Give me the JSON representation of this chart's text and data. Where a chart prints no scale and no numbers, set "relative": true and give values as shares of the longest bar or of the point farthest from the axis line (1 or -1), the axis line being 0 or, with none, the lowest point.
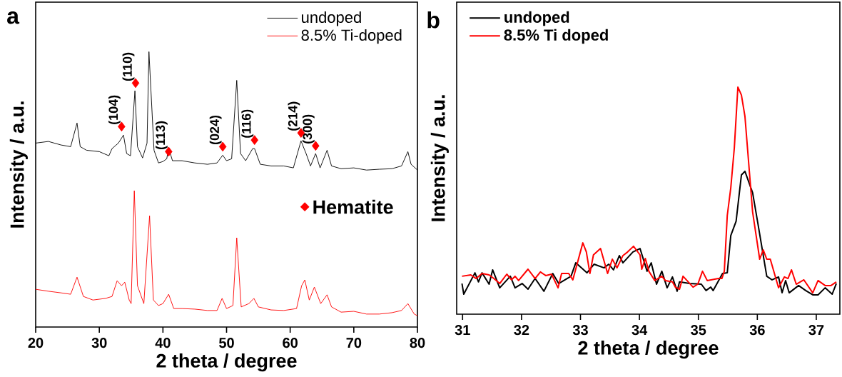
{
  "chart_data": [
    {
      "type": "line",
      "title": "a",
      "xlabel": "2 theta / degree",
      "ylabel": "Intensity / a.u.",
      "relative": true,
      "xlim": [
        20,
        80
      ],
      "xticks": [
        20,
        30,
        40,
        50,
        60,
        70,
        80
      ],
      "tick_labels": "x",
      "legend": "top right",
      "series": [
        {
          "name": "undoped",
          "color": "#000000",
          "x": [
            20,
            22,
            24,
            25.5,
            26.5,
            27,
            28,
            30,
            31.5,
            32,
            33,
            33.8,
            34.3,
            34.9,
            35.6,
            36,
            36.8,
            37.5,
            37.8,
            38.6,
            39.3,
            40,
            40.6,
            40.9,
            41.5,
            43,
            45,
            47,
            48.5,
            49.4,
            50,
            50.8,
            51.6,
            52.2,
            53,
            54.1,
            54.4,
            55.3,
            57,
            59,
            60.5,
            61.7,
            62.5,
            63.2,
            64,
            64.7,
            65.8,
            66.5,
            68,
            70,
            72,
            74,
            76,
            77.5,
            78.5,
            79,
            80
          ],
          "values": [
            0.668,
            0.674,
            0.661,
            0.655,
            0.741,
            0.655,
            0.642,
            0.637,
            0.622,
            0.648,
            0.668,
            0.697,
            0.63,
            0.622,
            0.858,
            0.655,
            0.614,
            0.668,
            1.0,
            0.642,
            0.596,
            0.601,
            0.611,
            0.65,
            0.604,
            0.604,
            0.596,
            0.591,
            0.596,
            0.624,
            0.604,
            0.611,
            0.896,
            0.63,
            0.604,
            0.648,
            0.648,
            0.591,
            0.585,
            0.585,
            0.578,
            0.676,
            0.63,
            0.585,
            0.63,
            0.578,
            0.642,
            0.585,
            0.575,
            0.578,
            0.57,
            0.573,
            0.575,
            0.585,
            0.637,
            0.591,
            0.57
          ]
        },
        {
          "name": "8.5% Ti-doped",
          "color": "#ff0000",
          "x": [
            20,
            22,
            24,
            25.5,
            26.5,
            27.5,
            29,
            31,
            32,
            32.8,
            33.5,
            34,
            34.7,
            35,
            35.5,
            36,
            37,
            37.9,
            38.5,
            39.3,
            40,
            40.9,
            41.7,
            43,
            45,
            47,
            48.5,
            49.3,
            50,
            51,
            51.6,
            52.3,
            53.5,
            54.3,
            55,
            57,
            59,
            61,
            61.8,
            62.3,
            63,
            63.8,
            64.8,
            65.8,
            66.5,
            68,
            70,
            72,
            74,
            76,
            77.5,
            78.5,
            79.5,
            80
          ],
          "values": [
            0.137,
            0.13,
            0.124,
            0.119,
            0.181,
            0.111,
            0.098,
            0.104,
            0.111,
            0.168,
            0.15,
            0.163,
            0.098,
            0.085,
            0.495,
            0.15,
            0.085,
            0.404,
            0.098,
            0.078,
            0.085,
            0.119,
            0.067,
            0.067,
            0.065,
            0.06,
            0.06,
            0.104,
            0.067,
            0.078,
            0.324,
            0.073,
            0.085,
            0.104,
            0.073,
            0.062,
            0.06,
            0.067,
            0.15,
            0.171,
            0.098,
            0.145,
            0.085,
            0.117,
            0.073,
            0.054,
            0.057,
            0.047,
            0.047,
            0.052,
            0.06,
            0.085,
            0.047,
            0.041
          ]
        },
        {
          "name": "Hematite",
          "type": "scatter",
          "marker": "diamond",
          "color": "#ff0000",
          "x": [
            33.5,
            35.7,
            40.9,
            49.4,
            54.4,
            61.7,
            64.0
          ],
          "values": [
            0.728,
            0.886,
            0.637,
            0.655,
            0.679,
            0.705,
            0.658
          ]
        }
      ],
      "annotations": [
        {
          "text": "(104)",
          "x": 33.5,
          "y": 0.728
        },
        {
          "text": "(110)",
          "x": 35.7,
          "y": 0.886
        },
        {
          "text": "(113)",
          "x": 40.9,
          "y": 0.637
        },
        {
          "text": "(024)",
          "x": 49.4,
          "y": 0.655
        },
        {
          "text": "(116)",
          "x": 54.4,
          "y": 0.679
        },
        {
          "text": "(214)",
          "x": 61.7,
          "y": 0.705
        },
        {
          "text": "(300)",
          "x": 64.0,
          "y": 0.658
        }
      ]
    },
    {
      "type": "line",
      "title": "b",
      "xlabel": "2 theta / degree",
      "ylabel": "Intensity / a.u.",
      "relative": true,
      "xlim": [
        30.9,
        37.4
      ],
      "xticks": [
        31,
        32,
        33,
        34,
        35,
        36,
        37
      ],
      "tick_labels": "x",
      "legend": "top left",
      "series": [
        {
          "name": "undoped",
          "color": "#000000",
          "x": [
            30.99,
            31.02,
            31.21,
            31.27,
            31.33,
            31.45,
            31.51,
            31.63,
            31.81,
            31.89,
            32.01,
            32.11,
            32.23,
            32.38,
            32.53,
            32.63,
            32.84,
            32.92,
            33.11,
            33.23,
            33.4,
            33.48,
            33.56,
            33.66,
            33.72,
            33.89,
            34.01,
            34.13,
            34.2,
            34.29,
            34.38,
            34.47,
            34.56,
            34.64,
            34.68,
            34.85,
            35.05,
            35.13,
            35.21,
            35.25,
            35.41,
            35.49,
            35.55,
            35.64,
            35.73,
            35.79,
            35.92,
            36.01,
            36.16,
            36.25,
            36.36,
            36.42,
            36.48,
            36.54,
            36.7,
            36.82,
            36.94,
            37.03,
            37.15,
            37.27,
            37.34
          ],
          "values": [
            0.135,
            0.088,
            0.182,
            0.142,
            0.182,
            0.132,
            0.195,
            0.116,
            0.167,
            0.116,
            0.135,
            0.11,
            0.157,
            0.101,
            0.179,
            0.135,
            0.167,
            0.226,
            0.182,
            0.22,
            0.204,
            0.22,
            0.195,
            0.258,
            0.226,
            0.274,
            0.289,
            0.189,
            0.226,
            0.132,
            0.189,
            0.116,
            0.164,
            0.101,
            0.142,
            0.135,
            0.132,
            0.104,
            0.119,
            0.104,
            0.179,
            0.182,
            0.346,
            0.409,
            0.613,
            0.629,
            0.535,
            0.399,
            0.167,
            0.151,
            0.164,
            0.094,
            0.148,
            0.094,
            0.126,
            0.104,
            0.085,
            0.085,
            0.116,
            0.088,
            0.135
          ]
        },
        {
          "name": "8.5% Ti doped",
          "color": "#ff0000",
          "x": [
            30.99,
            31.14,
            31.23,
            31.33,
            31.45,
            31.53,
            31.63,
            31.75,
            31.83,
            31.89,
            31.95,
            32.11,
            32.23,
            32.32,
            32.41,
            32.51,
            32.62,
            32.68,
            32.8,
            32.87,
            33.04,
            33.1,
            33.16,
            33.22,
            33.34,
            33.46,
            33.54,
            33.62,
            33.72,
            33.8,
            33.9,
            34.01,
            34.04,
            34.1,
            34.16,
            34.26,
            34.38,
            34.44,
            34.56,
            34.61,
            34.68,
            34.74,
            34.91,
            34.99,
            35.07,
            35.15,
            35.34,
            35.4,
            35.44,
            35.49,
            35.55,
            35.61,
            35.67,
            35.73,
            35.79,
            35.92,
            36.04,
            36.1,
            36.16,
            36.22,
            36.36,
            36.46,
            36.52,
            36.58,
            36.66,
            36.79,
            36.94,
            37.03,
            37.15,
            37.25,
            37.34
          ],
          "values": [
            0.167,
            0.173,
            0.157,
            0.179,
            0.173,
            0.157,
            0.135,
            0.176,
            0.151,
            0.167,
            0.148,
            0.198,
            0.157,
            0.186,
            0.17,
            0.176,
            0.116,
            0.179,
            0.179,
            0.151,
            0.314,
            0.274,
            0.179,
            0.261,
            0.289,
            0.179,
            0.242,
            0.204,
            0.258,
            0.274,
            0.299,
            0.261,
            0.198,
            0.245,
            0.189,
            0.148,
            0.167,
            0.148,
            0.142,
            0.119,
            0.11,
            0.167,
            0.119,
            0.132,
            0.189,
            0.148,
            0.157,
            0.157,
            0.189,
            0.434,
            0.557,
            0.733,
            1.0,
            0.965,
            0.871,
            0.45,
            0.242,
            0.283,
            0.242,
            0.242,
            0.116,
            0.164,
            0.157,
            0.195,
            0.132,
            0.151,
            0.094,
            0.148,
            0.126,
            0.126,
            0.142
          ]
        }
      ]
    }
  ]
}
